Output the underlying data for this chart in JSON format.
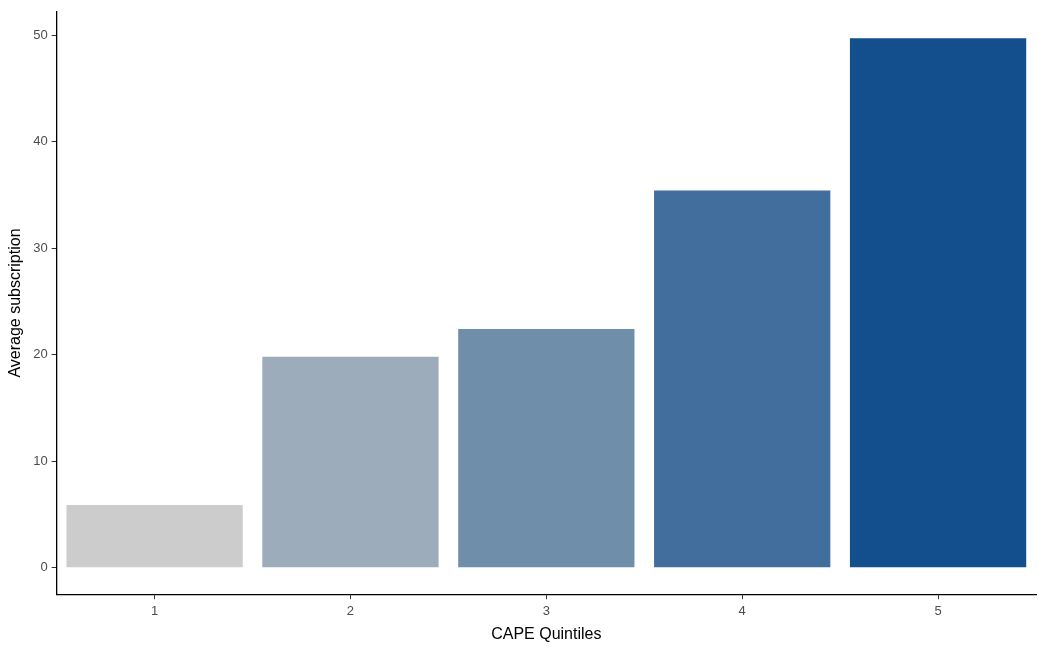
{
  "chart_data": {
    "type": "bar",
    "xlabel": "CAPE Quintiles",
    "ylabel": "Average subscription",
    "categories": [
      "1",
      "2",
      "3",
      "4",
      "5"
    ],
    "values": [
      5.9,
      19.8,
      22.4,
      35.4,
      49.7
    ],
    "colors": [
      "#cccccc",
      "#9dacba",
      "#6f8ea9",
      "#416e9c",
      "#124f8c"
    ],
    "ylim": [
      -2.485,
      52.185
    ],
    "yticks": [
      0,
      10,
      20,
      30,
      40,
      50
    ],
    "grid": false,
    "legend": false
  }
}
